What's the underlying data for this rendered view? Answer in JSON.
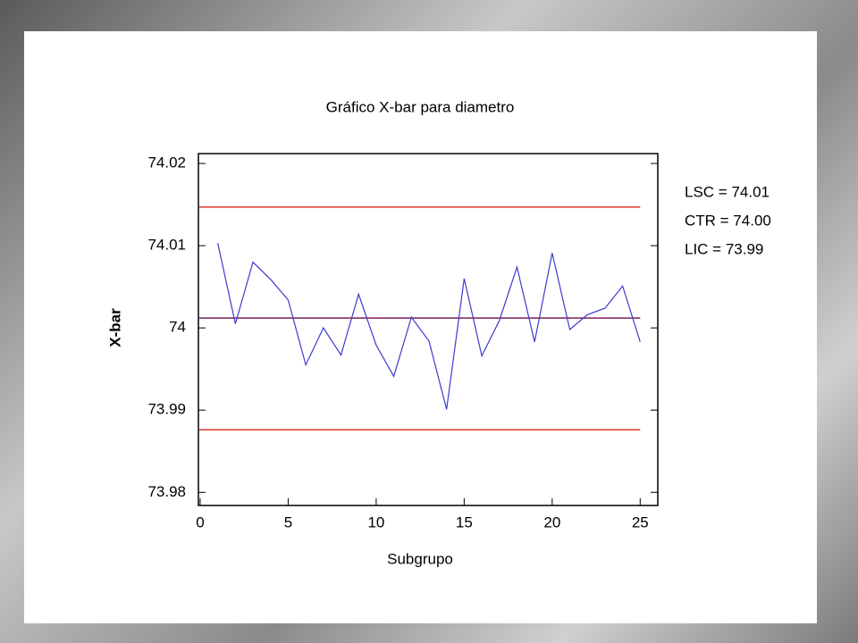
{
  "chart_data": {
    "type": "line",
    "title": "Gráfico X-bar para diametro",
    "xlabel": "Subgrupo",
    "ylabel": "X-bar",
    "x": [
      1,
      2,
      3,
      4,
      5,
      6,
      7,
      8,
      9,
      10,
      11,
      12,
      13,
      14,
      15,
      16,
      17,
      18,
      19,
      20,
      21,
      22,
      23,
      24,
      25
    ],
    "series": [
      {
        "color": "#3b3bd0",
        "values": [
          74.0103,
          74.0005,
          74.008,
          74.0059,
          74.0034,
          73.9955,
          74.0,
          73.9967,
          74.0041,
          73.9979,
          73.9941,
          74.0013,
          73.9984,
          73.9901,
          74.006,
          73.9966,
          74.0009,
          74.0074,
          73.9983,
          74.0091,
          73.9998,
          74.0016,
          74.0024,
          74.0051,
          73.9983
        ]
      }
    ],
    "control_lines": [
      {
        "label": "LSC = 74.01",
        "value": 74.0147,
        "color": "#e0392b"
      },
      {
        "label": "CTR = 74.00",
        "value": 74.0012,
        "color": "#7a1f5c"
      },
      {
        "label": "LIC = 73.99",
        "value": 73.9876,
        "color": "#e0392b"
      }
    ],
    "xlim": [
      -0.1,
      26.0
    ],
    "xticks": [
      0,
      5,
      10,
      15,
      20,
      25
    ],
    "ylim": [
      73.9784,
      74.0212
    ],
    "yticks": [
      73.98,
      73.99,
      74,
      74.01,
      74.02
    ]
  }
}
